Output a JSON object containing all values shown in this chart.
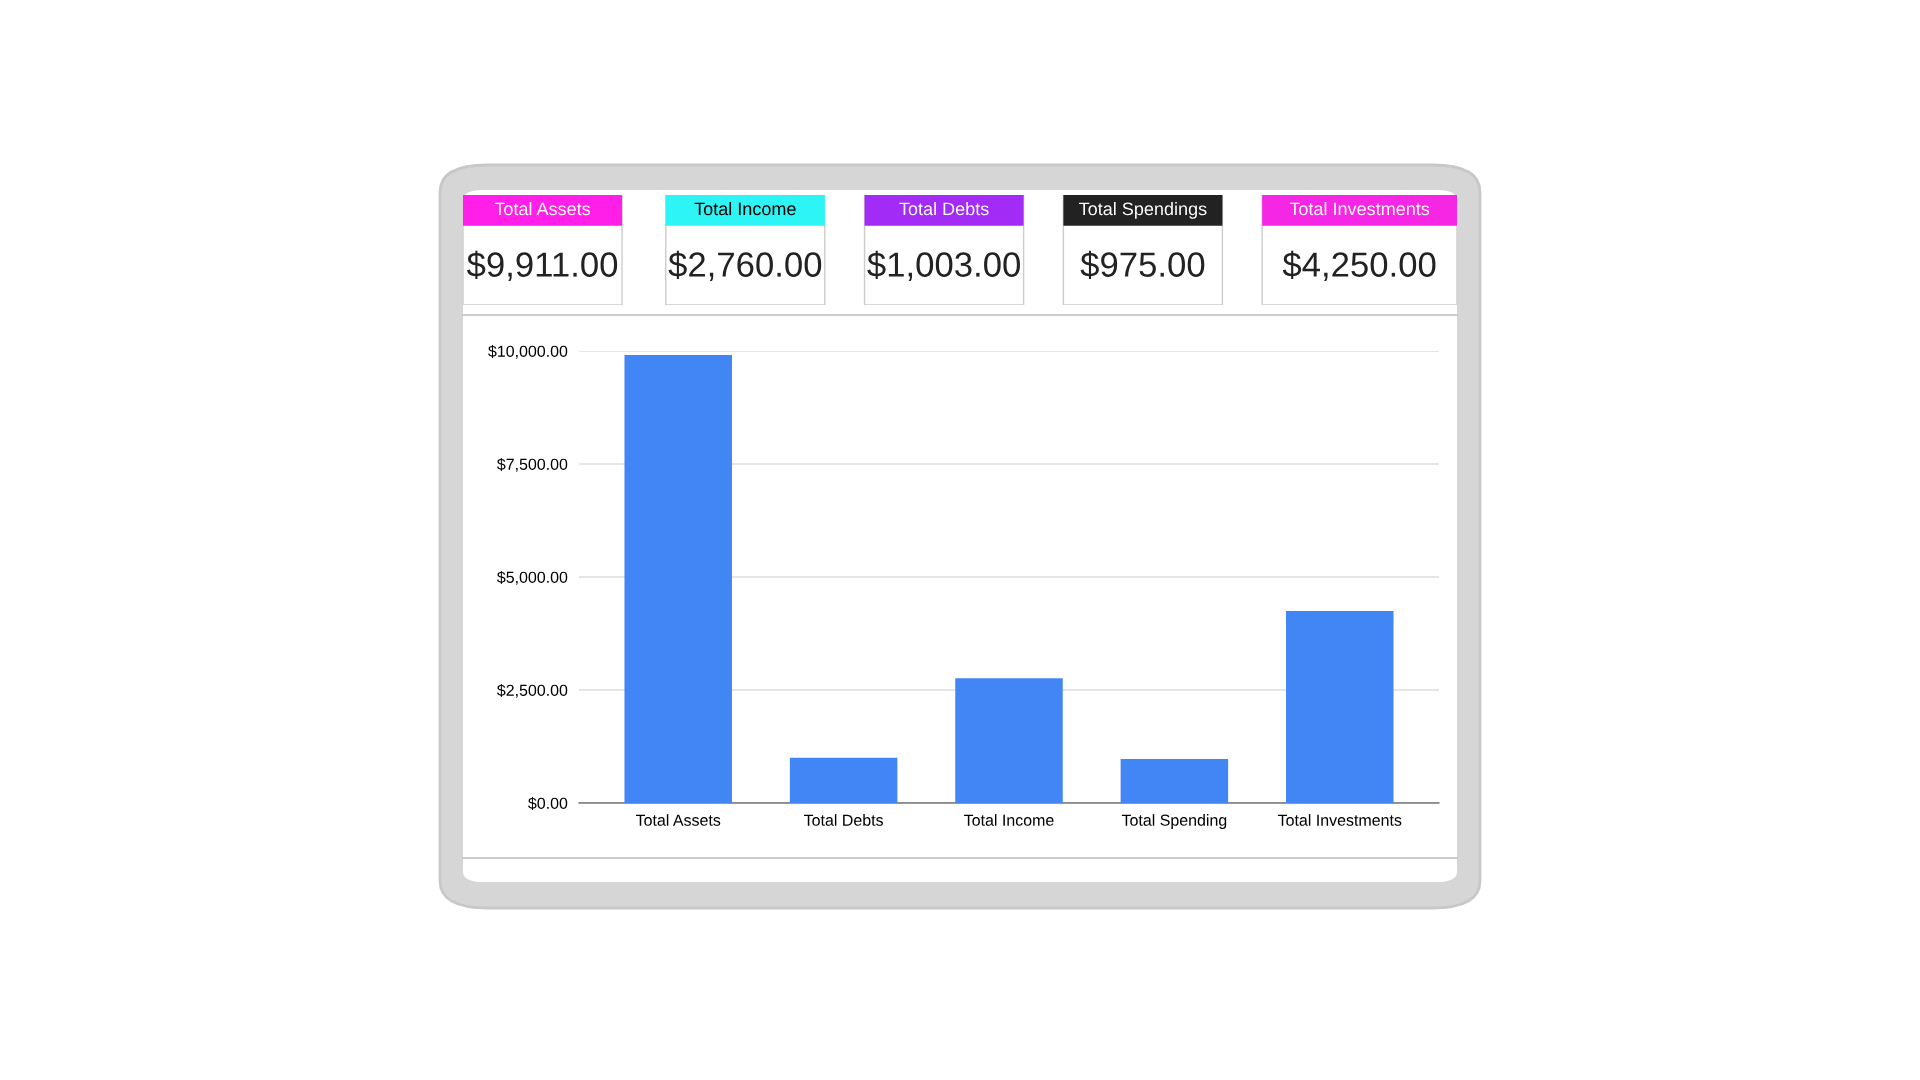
{
  "chart_data": [
    {
      "type": "other",
      "categories": [
        "Total Assets",
        "Total Income",
        "Total Debts",
        "Total Spendings",
        "Total Investments"
      ],
      "values": [
        9911,
        2760,
        1003,
        975,
        4250
      ],
      "value_labels": [
        "$9,911.00",
        "$2,760.00",
        "$1,003.00",
        "$975.00",
        "$4,250.00"
      ],
      "colors": [
        "#ff1fe8",
        "#2ef5f5",
        "#a22cf5",
        "#222222",
        "#f526e4"
      ]
    },
    {
      "type": "bar",
      "categories": [
        "Total Assets",
        "Total Debts",
        "Total Income",
        "Total Spending",
        "Total Investments"
      ],
      "values": [
        9911,
        1003,
        2760,
        975,
        4250
      ],
      "color": "#4285f4",
      "ylim": [
        0,
        10000
      ],
      "yticks": [
        {
          "value": 0,
          "label": "$0.00"
        },
        {
          "value": 2500,
          "label": "$2,500.00"
        },
        {
          "value": 5000,
          "label": "$5,000.00"
        },
        {
          "value": 7500,
          "label": "$7,500.00"
        },
        {
          "value": 10000,
          "label": "$10,000.00"
        }
      ],
      "grid": "y",
      "legend": false
    }
  ]
}
